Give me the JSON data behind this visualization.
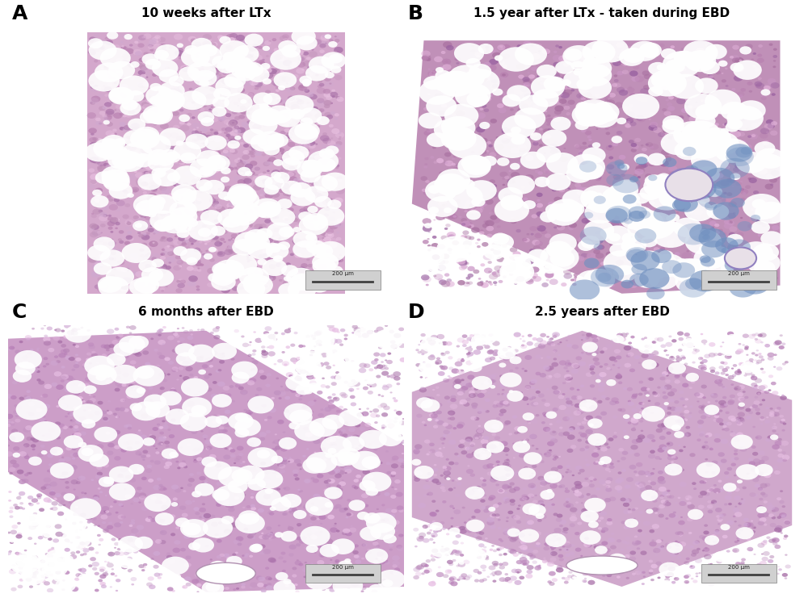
{
  "panels": [
    {
      "label": "A",
      "title": "10 weeks after LTx",
      "scale_bar": "200 μm"
    },
    {
      "label": "B",
      "title": "1.5 year after LTx - taken during EBD",
      "scale_bar": "200 μm"
    },
    {
      "label": "C",
      "title": "6 months after EBD",
      "scale_bar": "200 μm"
    },
    {
      "label": "D",
      "title": "2.5 years after EBD",
      "scale_bar": "200 μm"
    }
  ],
  "fig_bg_color": "#ffffff",
  "panel_bg_color": "#c8c8c8",
  "title_bg_color": "#b4b4b4",
  "label_color": "#000000",
  "title_color": "#000000",
  "scale_bar_color": "#404040",
  "figsize": [
    10.0,
    7.41
  ],
  "dpi": 100
}
